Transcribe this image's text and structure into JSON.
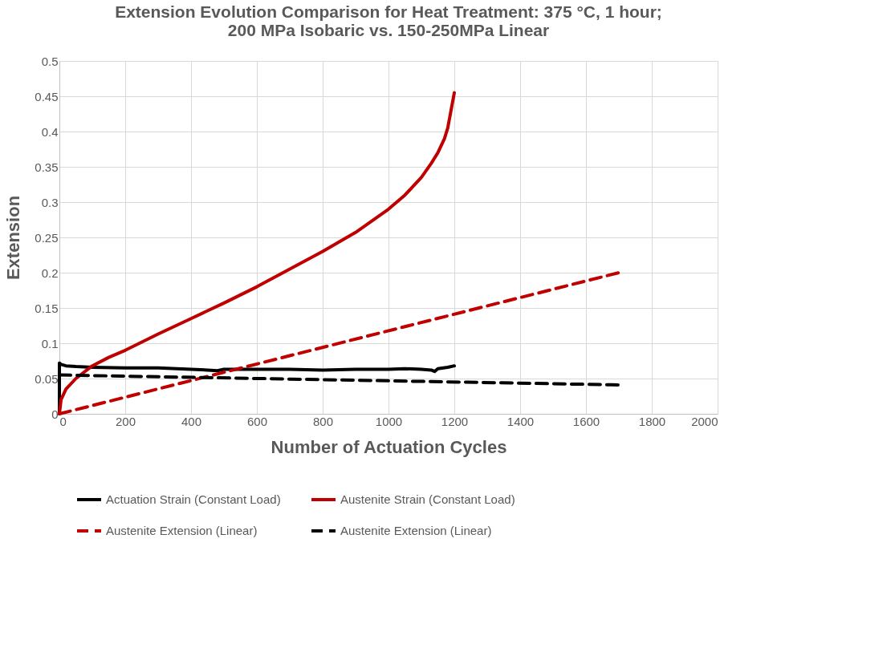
{
  "chart_data": {
    "type": "line",
    "title": "Extension Evolution Comparison for Heat Treatment: 375 °C, 1 hour;\n200 MPa Isobaric vs. 150-250MPa Linear",
    "xlabel": "Number of Actuation Cycles",
    "ylabel": "Extension",
    "xlim": [
      0,
      2000
    ],
    "xticks": [
      0,
      200,
      400,
      600,
      800,
      1000,
      1200,
      1400,
      1600,
      1800,
      2000
    ],
    "ylim": [
      0,
      0.5
    ],
    "yticks": [
      0,
      0.05,
      0.1,
      0.15,
      0.2,
      0.25,
      0.3,
      0.35,
      0.4,
      0.45,
      0.5
    ],
    "grid": true,
    "legend": "bottom",
    "series": [
      {
        "name": "Actuation Strain (Constant Load)",
        "color": "#000000",
        "line_style": "solid",
        "x": [
          0,
          0,
          5,
          20,
          50,
          100,
          200,
          300,
          400,
          450,
          480,
          500,
          600,
          700,
          800,
          900,
          1000,
          1050,
          1100,
          1130,
          1140,
          1150,
          1180,
          1200
        ],
        "values": [
          0,
          0.072,
          0.07,
          0.068,
          0.067,
          0.066,
          0.065,
          0.065,
          0.063,
          0.062,
          0.061,
          0.063,
          0.063,
          0.063,
          0.062,
          0.063,
          0.063,
          0.064,
          0.063,
          0.062,
          0.06,
          0.064,
          0.066,
          0.068
        ]
      },
      {
        "name": "Austenite Strain (Constant Load)",
        "color": "#c00000",
        "line_style": "solid",
        "x": [
          0,
          5,
          20,
          50,
          100,
          150,
          200,
          300,
          400,
          500,
          600,
          700,
          800,
          900,
          1000,
          1050,
          1100,
          1130,
          1150,
          1170,
          1180,
          1190,
          1200
        ],
        "values": [
          0,
          0.02,
          0.035,
          0.05,
          0.068,
          0.08,
          0.09,
          0.113,
          0.135,
          0.157,
          0.18,
          0.205,
          0.23,
          0.257,
          0.29,
          0.31,
          0.335,
          0.355,
          0.37,
          0.39,
          0.405,
          0.43,
          0.455
        ]
      },
      {
        "name": "Austenite Extension (Linear)",
        "color": "#c00000",
        "line_style": "dashed",
        "x": [
          0,
          1700
        ],
        "values": [
          0,
          0.2
        ]
      },
      {
        "name": "Austenite Extension (Linear)",
        "color": "#000000",
        "line_style": "dashed",
        "x": [
          0,
          1700
        ],
        "values": [
          0.055,
          0.041
        ]
      }
    ]
  }
}
